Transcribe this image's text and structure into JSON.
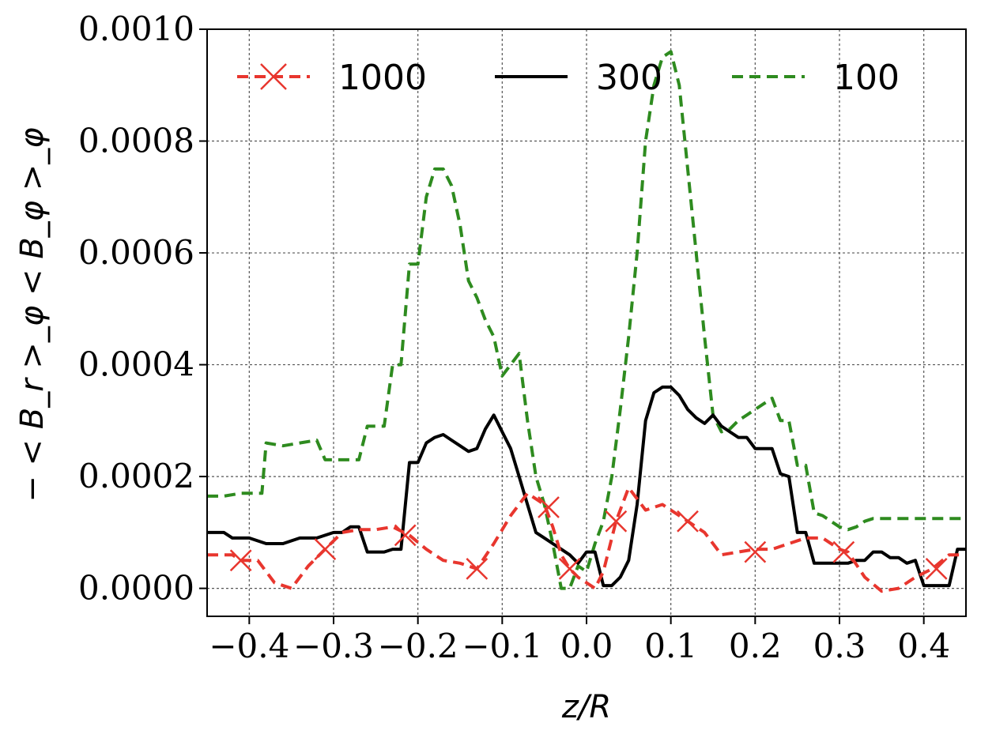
{
  "chart_data": {
    "type": "line",
    "xlabel": "z/R",
    "ylabel": "− < B_r >_φ < B_φ >_φ",
    "xlim": [
      -0.45,
      0.45
    ],
    "ylim": [
      -5e-05,
      0.001
    ],
    "x_ticks": [
      -0.4,
      -0.3,
      -0.2,
      -0.1,
      0.0,
      0.1,
      0.2,
      0.3,
      0.4
    ],
    "x_tick_labels": [
      "−0.4",
      "−0.3",
      "−0.2",
      "−0.1",
      "0.0",
      "0.1",
      "0.2",
      "0.3",
      "0.4"
    ],
    "y_ticks": [
      0.0,
      0.0002,
      0.0004,
      0.0006,
      0.0008,
      0.001
    ],
    "y_tick_labels": [
      "0.0000",
      "0.0002",
      "0.0004",
      "0.0006",
      "0.0008",
      "0.0010"
    ],
    "grid": true,
    "legend_position": "top",
    "series": [
      {
        "name": "1000",
        "color": "#e8362e",
        "style": "dashed",
        "marker": "x",
        "x": [
          -0.45,
          -0.42,
          -0.41,
          -0.39,
          -0.37,
          -0.35,
          -0.33,
          -0.31,
          -0.29,
          -0.27,
          -0.25,
          -0.23,
          -0.21,
          -0.19,
          -0.17,
          -0.15,
          -0.13,
          -0.11,
          -0.09,
          -0.07,
          -0.05,
          -0.04,
          -0.03,
          -0.02,
          -0.01,
          0.0,
          0.01,
          0.02,
          0.035,
          0.05,
          0.07,
          0.09,
          0.12,
          0.14,
          0.16,
          0.18,
          0.2,
          0.22,
          0.24,
          0.26,
          0.28,
          0.3,
          0.31,
          0.33,
          0.35,
          0.37,
          0.39,
          0.41,
          0.43,
          0.45
        ],
        "y": [
          6e-05,
          6e-05,
          5e-05,
          5e-05,
          1e-05,
          0.0,
          4e-05,
          7e-05,
          0.0001,
          0.000105,
          0.000105,
          0.00011,
          9.5e-05,
          7e-05,
          5e-05,
          4.5e-05,
          3.5e-05,
          8e-05,
          0.00013,
          0.00017,
          0.00015,
          0.00011,
          6e-05,
          3.5e-05,
          2e-05,
          1e-05,
          0.0,
          3e-05,
          0.00012,
          0.00018,
          0.00014,
          0.00015,
          0.00012,
          0.0001,
          6e-05,
          6.5e-05,
          7e-05,
          7e-05,
          8e-05,
          9e-05,
          9e-05,
          7e-05,
          6.5e-05,
          2e-05,
          -5e-06,
          0.0,
          2e-05,
          3.5e-05,
          6e-05,
          6e-05
        ],
        "marker_x": [
          -0.41,
          -0.31,
          -0.215,
          -0.13,
          -0.045,
          -0.02,
          0.035,
          0.12,
          0.2,
          0.305,
          0.415
        ],
        "marker_y": [
          5e-05,
          7e-05,
          9.5e-05,
          3.5e-05,
          0.000145,
          3.5e-05,
          0.00012,
          0.00012,
          6.5e-05,
          6.5e-05,
          3.5e-05
        ]
      },
      {
        "name": "300",
        "color": "#000000",
        "style": "solid",
        "x": [
          -0.45,
          -0.43,
          -0.42,
          -0.4,
          -0.38,
          -0.36,
          -0.34,
          -0.32,
          -0.3,
          -0.29,
          -0.28,
          -0.27,
          -0.26,
          -0.25,
          -0.24,
          -0.23,
          -0.22,
          -0.21,
          -0.2,
          -0.19,
          -0.18,
          -0.17,
          -0.16,
          -0.15,
          -0.14,
          -0.13,
          -0.12,
          -0.11,
          -0.1,
          -0.09,
          -0.08,
          -0.07,
          -0.06,
          -0.05,
          -0.04,
          -0.03,
          -0.02,
          -0.01,
          0.0,
          0.01,
          0.02,
          0.03,
          0.04,
          0.05,
          0.06,
          0.07,
          0.08,
          0.09,
          0.1,
          0.11,
          0.12,
          0.13,
          0.14,
          0.15,
          0.16,
          0.17,
          0.18,
          0.19,
          0.2,
          0.21,
          0.22,
          0.23,
          0.24,
          0.25,
          0.26,
          0.27,
          0.28,
          0.29,
          0.3,
          0.31,
          0.32,
          0.33,
          0.34,
          0.35,
          0.36,
          0.37,
          0.38,
          0.39,
          0.4,
          0.41,
          0.42,
          0.43,
          0.44,
          0.45
        ],
        "y": [
          0.0001,
          0.0001,
          9e-05,
          9e-05,
          8e-05,
          8e-05,
          9e-05,
          9e-05,
          0.0001,
          0.0001,
          0.00011,
          0.00011,
          6.5e-05,
          6.5e-05,
          6.5e-05,
          7e-05,
          7e-05,
          0.000225,
          0.000225,
          0.00026,
          0.00027,
          0.000275,
          0.000265,
          0.000255,
          0.000245,
          0.00025,
          0.000285,
          0.00031,
          0.00028,
          0.00025,
          0.0002,
          0.00015,
          0.0001,
          9e-05,
          8e-05,
          7e-05,
          6e-05,
          4.5e-05,
          6.5e-05,
          6.5e-05,
          5e-06,
          5e-06,
          2e-05,
          5e-05,
          0.00015,
          0.0003,
          0.00035,
          0.00036,
          0.00036,
          0.000345,
          0.00032,
          0.000305,
          0.000295,
          0.00031,
          0.00029,
          0.00028,
          0.00027,
          0.00027,
          0.00025,
          0.00025,
          0.00025,
          0.000205,
          0.0002,
          0.0001,
          0.0001,
          4.5e-05,
          4.5e-05,
          4.5e-05,
          4.5e-05,
          4.5e-05,
          5e-05,
          5e-05,
          6.5e-05,
          6.5e-05,
          5.5e-05,
          5.5e-05,
          4.5e-05,
          5e-05,
          5e-06,
          5e-06,
          5e-06,
          5e-06,
          7e-05,
          7e-05
        ]
      },
      {
        "name": "100",
        "color": "#2e8b1f",
        "style": "dashed",
        "x": [
          -0.45,
          -0.43,
          -0.41,
          -0.4,
          -0.385,
          -0.38,
          -0.36,
          -0.34,
          -0.32,
          -0.31,
          -0.29,
          -0.27,
          -0.26,
          -0.24,
          -0.23,
          -0.22,
          -0.21,
          -0.2,
          -0.19,
          -0.18,
          -0.17,
          -0.16,
          -0.15,
          -0.14,
          -0.13,
          -0.12,
          -0.11,
          -0.1,
          -0.09,
          -0.08,
          -0.07,
          -0.06,
          -0.05,
          -0.04,
          -0.03,
          -0.02,
          -0.01,
          0.0,
          0.01,
          0.02,
          0.03,
          0.04,
          0.05,
          0.06,
          0.07,
          0.08,
          0.09,
          0.1,
          0.11,
          0.12,
          0.13,
          0.14,
          0.15,
          0.16,
          0.17,
          0.18,
          0.19,
          0.2,
          0.21,
          0.22,
          0.23,
          0.24,
          0.25,
          0.26,
          0.27,
          0.28,
          0.29,
          0.3,
          0.31,
          0.32,
          0.33,
          0.34,
          0.35,
          0.36,
          0.37,
          0.38,
          0.39,
          0.4,
          0.42,
          0.45
        ],
        "y": [
          0.000165,
          0.000165,
          0.00017,
          0.00017,
          0.00017,
          0.00026,
          0.000255,
          0.00026,
          0.000265,
          0.00023,
          0.00023,
          0.00023,
          0.00029,
          0.00029,
          0.0004,
          0.0004,
          0.00058,
          0.00058,
          0.0007,
          0.00075,
          0.00075,
          0.00072,
          0.00065,
          0.00055,
          0.00052,
          0.00048,
          0.00045,
          0.00038,
          0.0004,
          0.00042,
          0.0003,
          0.0002,
          0.00015,
          8e-05,
          0.0,
          0.0,
          4e-05,
          3e-05,
          8e-05,
          0.00012,
          0.0002,
          0.00032,
          0.00045,
          0.0006,
          0.0008,
          0.0009,
          0.00095,
          0.00096,
          0.0009,
          0.00075,
          0.0006,
          0.00045,
          0.00031,
          0.00028,
          0.000285,
          0.0003,
          0.00031,
          0.00032,
          0.00033,
          0.00034,
          0.0003,
          0.0003,
          0.00022,
          0.00022,
          0.000135,
          0.00013,
          0.00012,
          0.00011,
          0.000105,
          0.00011,
          0.00012,
          0.000125,
          0.000125,
          0.000125,
          0.000125,
          0.000125,
          0.000125,
          0.000125,
          0.000125,
          0.000125
        ]
      }
    ]
  }
}
